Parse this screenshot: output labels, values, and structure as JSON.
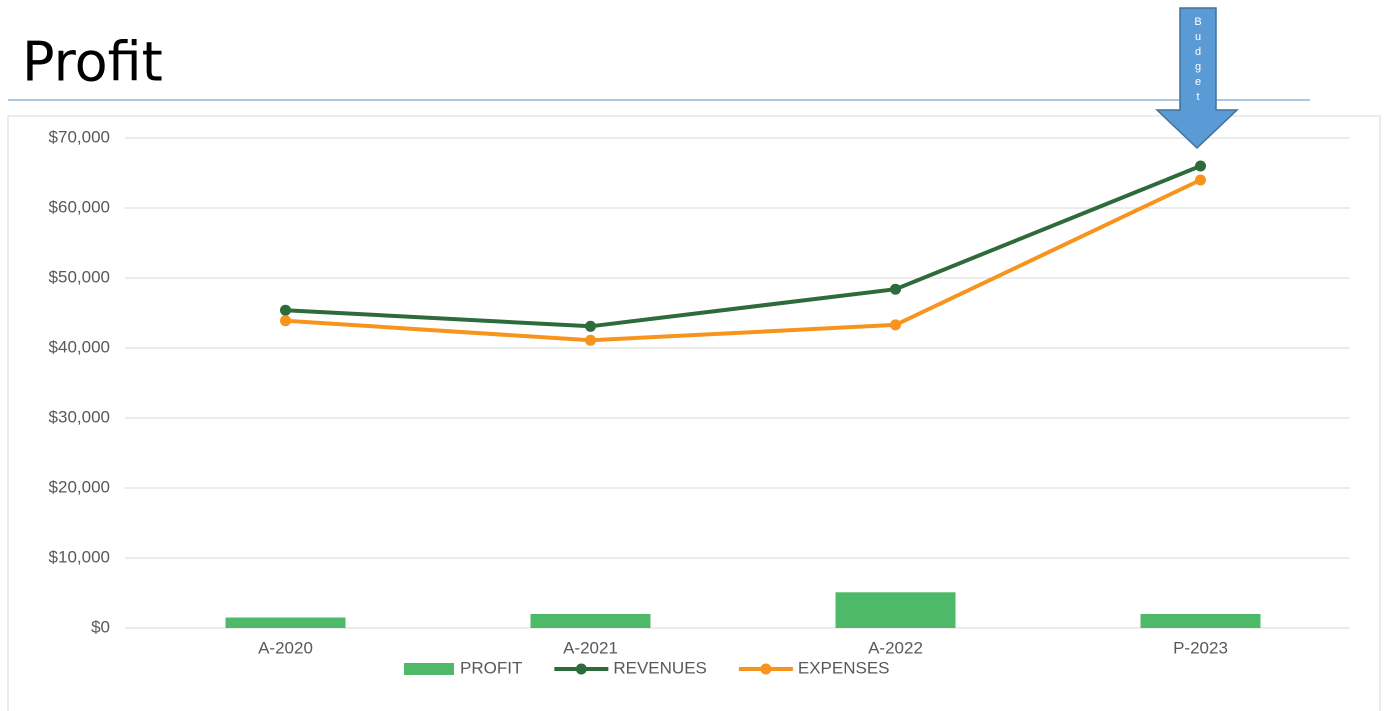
{
  "chart_data": {
    "type": "combo",
    "title": "Profit",
    "annotation": "Budget",
    "categories": [
      "A-2020",
      "A-2021",
      "A-2022",
      "P-2023"
    ],
    "series": [
      {
        "name": "PROFIT",
        "type": "bar",
        "color": "#4fb96a",
        "values": [
          1500,
          2000,
          5100,
          2000
        ]
      },
      {
        "name": "REVENUES",
        "type": "line",
        "color": "#2e6b3a",
        "values": [
          45400,
          43100,
          48400,
          66000
        ]
      },
      {
        "name": "EXPENSES",
        "type": "line",
        "color": "#f7941d",
        "values": [
          43900,
          41100,
          43300,
          64000
        ]
      }
    ],
    "ylim": [
      0,
      70000
    ],
    "yticks": [
      {
        "value": 0,
        "label": "$0"
      },
      {
        "value": 10000,
        "label": "$10,000"
      },
      {
        "value": 20000,
        "label": "$20,000"
      },
      {
        "value": 30000,
        "label": "$30,000"
      },
      {
        "value": 40000,
        "label": "$40,000"
      },
      {
        "value": 50000,
        "label": "$50,000"
      },
      {
        "value": 60000,
        "label": "$60,000"
      },
      {
        "value": 70000,
        "label": "$70,000"
      }
    ],
    "grid": true,
    "legend": "bottom"
  }
}
